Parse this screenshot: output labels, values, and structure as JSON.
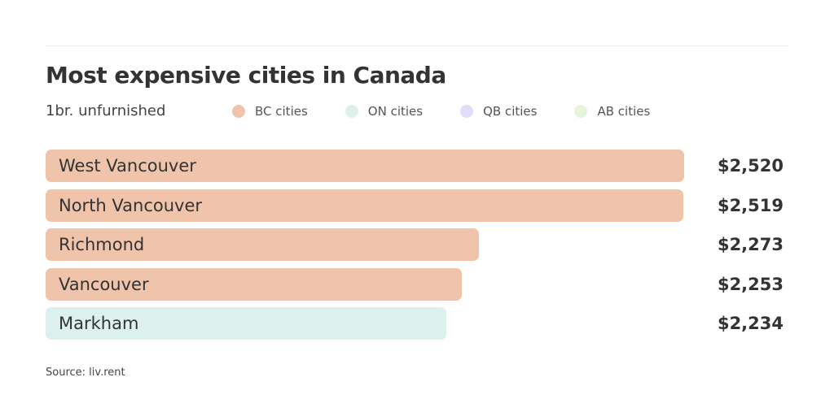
{
  "chart_data": {
    "type": "bar",
    "title": "Most expensive cities in Canada",
    "subtitle": "1br. unfurnished",
    "legend": [
      {
        "label": "BC cities",
        "color": "#f0c4ab"
      },
      {
        "label": "ON cities",
        "color": "#dcf1ee"
      },
      {
        "label": "QB cities",
        "color": "#e0dcfa"
      },
      {
        "label": "AB cities",
        "color": "#e6f5d8"
      }
    ],
    "categories": [
      "West Vancouver",
      "North Vancouver",
      "Richmond",
      "Vancouver",
      "Markham"
    ],
    "values": [
      2520,
      2519,
      2273,
      2253,
      2234
    ],
    "value_labels": [
      "$2,520",
      "$2,519",
      "$2,273",
      "$2,253",
      "$2,234"
    ],
    "groups": [
      0,
      0,
      0,
      0,
      1
    ],
    "axis_base": 1752,
    "source": "Source: liv.rent"
  }
}
